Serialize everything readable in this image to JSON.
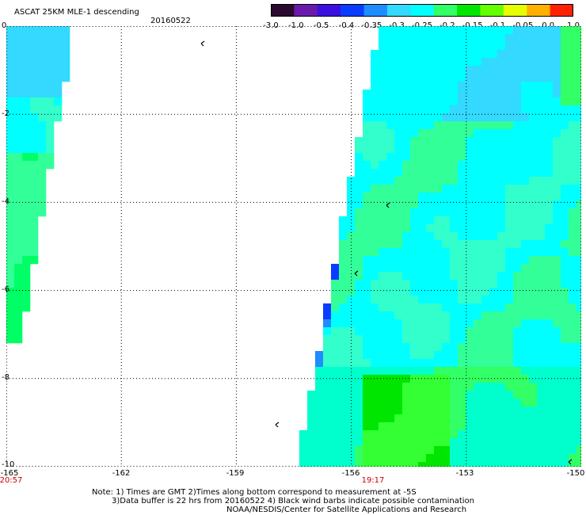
{
  "header": {
    "title": "ASCAT 25KM MLE-1 descending",
    "date": "20160522"
  },
  "colorbar": {
    "labels": [
      "-3.0",
      "-1.0",
      "-0.5",
      "-0.4",
      "-0.35",
      "-0.3",
      "-0.25",
      "-0.2",
      "-0.15",
      "-0.1",
      "-0.05",
      "0.0",
      "1.0"
    ],
    "colors": [
      "#2a0a2e",
      "#6a1aa8",
      "#3a10e0",
      "#0a3cff",
      "#1f8cff",
      "#33d9ff",
      "#00ffff",
      "#33ff66",
      "#00e600",
      "#66ff00",
      "#e6ff00",
      "#ffb000",
      "#ff2200"
    ]
  },
  "axes": {
    "y_ticks": [
      "0",
      "-2",
      "-4",
      "-6",
      "-8",
      "-10"
    ],
    "x_ticks": [
      "-165",
      "-162",
      "-159",
      "-156",
      "-153",
      "-150"
    ],
    "times": [
      {
        "lon": -165,
        "label": "20:57"
      },
      {
        "lon": -156,
        "label": "19:17"
      }
    ],
    "lon_range": [
      -165,
      -150
    ],
    "lat_range": [
      -10,
      0
    ],
    "grid": "dotted"
  },
  "notes": [
    "Note: 1) Times are GMT 2)Times along bottom correspond to measurement at -5S",
    "3)Data buffer is 22 hrs from 20160522 4) Black wind barbs indicate possible contamination",
    "NOAA/NESDIS/Center for Satellite Applications and Research"
  ]
}
